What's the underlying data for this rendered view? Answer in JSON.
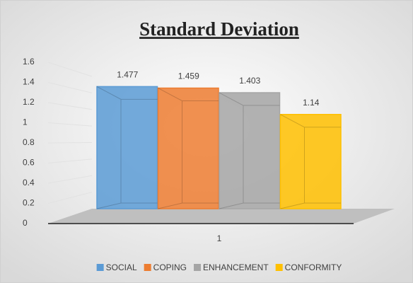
{
  "chart_data": {
    "type": "bar3d",
    "title": "Standard Deviation",
    "categories": [
      "1"
    ],
    "series": [
      {
        "name": "SOCIAL",
        "color": "#5b9bd5",
        "values": [
          1.477
        ]
      },
      {
        "name": "COPING",
        "color": "#ed7d31",
        "values": [
          1.459
        ]
      },
      {
        "name": "ENHANCEMENT",
        "color": "#a5a5a5",
        "values": [
          1.403
        ]
      },
      {
        "name": "CONFORMITY",
        "color": "#ffc000",
        "values": [
          1.14
        ]
      }
    ],
    "ylim": [
      0,
      1.6
    ],
    "yticks": [
      0,
      0.2,
      0.4,
      0.6,
      0.8,
      1,
      1.2,
      1.4,
      1.6
    ],
    "grid": true,
    "legend": "bottom"
  }
}
